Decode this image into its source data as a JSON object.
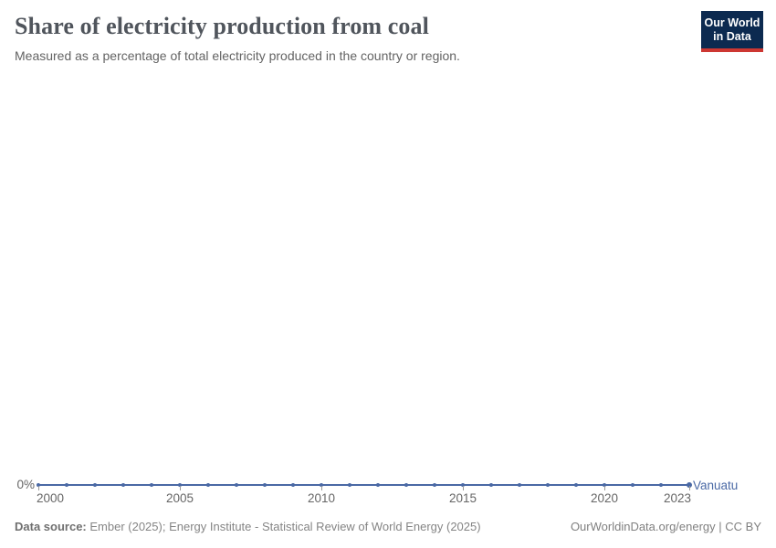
{
  "header": {
    "title": "Share of electricity production from coal",
    "subtitle": "Measured as a percentage of total electricity produced in the country or region."
  },
  "logo": {
    "line1": "Our World",
    "line2": "in Data",
    "bg_color": "#0c2a50",
    "bar_color": "#cd3732"
  },
  "chart_data": {
    "type": "line",
    "title": "Share of electricity production from coal",
    "xlabel": "",
    "ylabel": "",
    "unit": "%",
    "grid": false,
    "x": [
      2000,
      2001,
      2002,
      2003,
      2004,
      2005,
      2006,
      2007,
      2008,
      2009,
      2010,
      2011,
      2012,
      2013,
      2014,
      2015,
      2016,
      2017,
      2018,
      2019,
      2020,
      2021,
      2022,
      2023
    ],
    "series": [
      {
        "name": "Vanuatu",
        "color": "#4a69a5",
        "values": [
          0,
          0,
          0,
          0,
          0,
          0,
          0,
          0,
          0,
          0,
          0,
          0,
          0,
          0,
          0,
          0,
          0,
          0,
          0,
          0,
          0,
          0,
          0,
          0
        ]
      }
    ],
    "xlim": [
      2000,
      2023
    ],
    "ylim": [
      0,
      0
    ],
    "x_ticks": [
      2000,
      2005,
      2010,
      2015,
      2020,
      2023
    ],
    "y_tick_labels": [
      "0%"
    ],
    "legend_position": "end-of-line-label"
  },
  "footer": {
    "source_label": "Data source:",
    "source_text": " Ember (2025); Energy Institute - Statistical Review of World Energy (2025)",
    "right_text": "OurWorldinData.org/energy | CC BY"
  }
}
